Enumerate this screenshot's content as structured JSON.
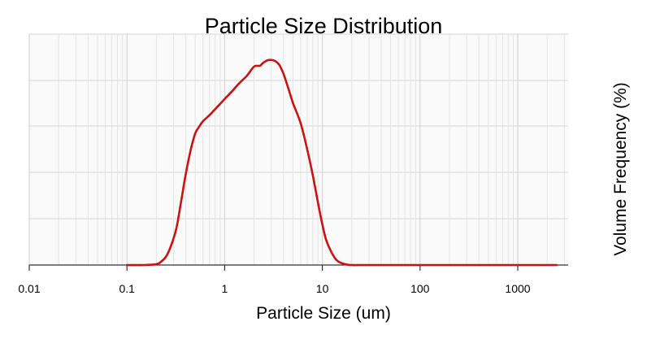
{
  "chart_data": {
    "type": "line",
    "title": "Particle Size Distribution",
    "xlabel": "Particle Size (um)",
    "ylabel": "Volume Frequency (%)",
    "x_scale": "log",
    "xlim": [
      0.01,
      3000
    ],
    "ylim": [
      0,
      5.7
    ],
    "x_ticks": [
      0.01,
      0.1,
      1,
      10,
      100,
      1000
    ],
    "x_tick_labels": [
      "0.01",
      "0.1",
      "1",
      "10",
      "100",
      "1000"
    ],
    "y_tick_labels_shown": false,
    "grid": true,
    "series": [
      {
        "color": "#cc1111",
        "x": [
          0.1,
          0.15,
          0.2,
          0.22,
          0.25,
          0.28,
          0.32,
          0.36,
          0.4,
          0.45,
          0.5,
          0.55,
          0.6,
          0.7,
          0.8,
          0.9,
          1.0,
          1.2,
          1.4,
          1.7,
          2.0,
          2.3,
          2.5,
          2.8,
          3.2,
          3.6,
          4.0,
          4.5,
          5.0,
          6.0,
          7.0,
          8.0,
          9.0,
          10.0,
          11.0,
          12.5,
          14.0,
          16.0,
          18.0,
          20.0,
          25.0,
          50.0,
          100.0,
          1000.0,
          2500.0
        ],
        "y": [
          0.0,
          0.0,
          0.02,
          0.07,
          0.2,
          0.45,
          0.9,
          1.6,
          2.25,
          2.85,
          3.25,
          3.42,
          3.55,
          3.7,
          3.85,
          3.98,
          4.1,
          4.3,
          4.48,
          4.68,
          4.9,
          4.92,
          5.0,
          5.06,
          5.05,
          4.95,
          4.72,
          4.35,
          4.0,
          3.5,
          2.85,
          2.2,
          1.55,
          1.0,
          0.6,
          0.3,
          0.12,
          0.04,
          0.01,
          0.0,
          0.0,
          0.0,
          0.0,
          0.0,
          0.0
        ]
      }
    ]
  }
}
